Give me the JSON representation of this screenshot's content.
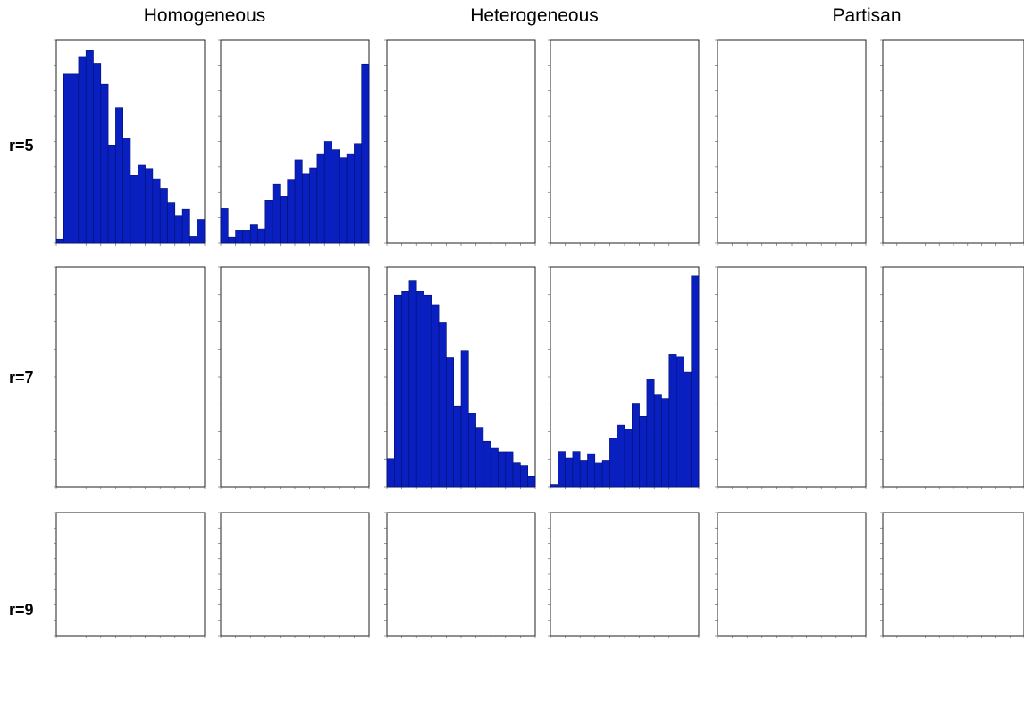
{
  "figure": {
    "column_titles": [
      "Homogeneous",
      "Heterogeneous",
      "Partisan"
    ],
    "row_labels": [
      "r=5",
      "r=7",
      "r=9"
    ]
  },
  "colors": {
    "bar_fill": "#0a1fbf",
    "bar_edge": "#00106e"
  },
  "chart_data": [
    {
      "type": "bar",
      "group": "Homogeneous",
      "row": "r=5",
      "panel": 1,
      "xlim": [
        0,
        20
      ],
      "ylim": [
        0,
        60
      ],
      "values": [
        1,
        50,
        50,
        55,
        57,
        53,
        47,
        29,
        40,
        31,
        20,
        23,
        22,
        19,
        16,
        12,
        8,
        10,
        2,
        7
      ]
    },
    {
      "type": "bar",
      "group": "Homogeneous",
      "row": "r=5",
      "panel": 2,
      "xlim": [
        0,
        20
      ],
      "ylim": [
        0,
        100
      ],
      "values": [
        17,
        3,
        6,
        6,
        9,
        7,
        21,
        29,
        23,
        31,
        41,
        34,
        37,
        44,
        50,
        46,
        42,
        44,
        49,
        88
      ]
    },
    {
      "type": "bar",
      "group": "Heterogeneous",
      "row": "r=7",
      "panel": 1,
      "xlim": [
        0,
        20
      ],
      "ylim": [
        0,
        63
      ],
      "values": [
        8,
        55,
        56,
        59,
        56,
        55,
        52,
        47,
        37,
        23,
        39,
        21,
        17,
        13,
        11,
        10,
        10,
        7,
        6,
        3
      ]
    },
    {
      "type": "bar",
      "group": "Heterogeneous",
      "row": "r=7",
      "panel": 2,
      "xlim": [
        0,
        20
      ],
      "ylim": [
        0,
        100
      ],
      "values": [
        1,
        16,
        13,
        16,
        12,
        15,
        11,
        12,
        22,
        28,
        26,
        38,
        32,
        49,
        42,
        40,
        60,
        59,
        52,
        96
      ]
    }
  ]
}
